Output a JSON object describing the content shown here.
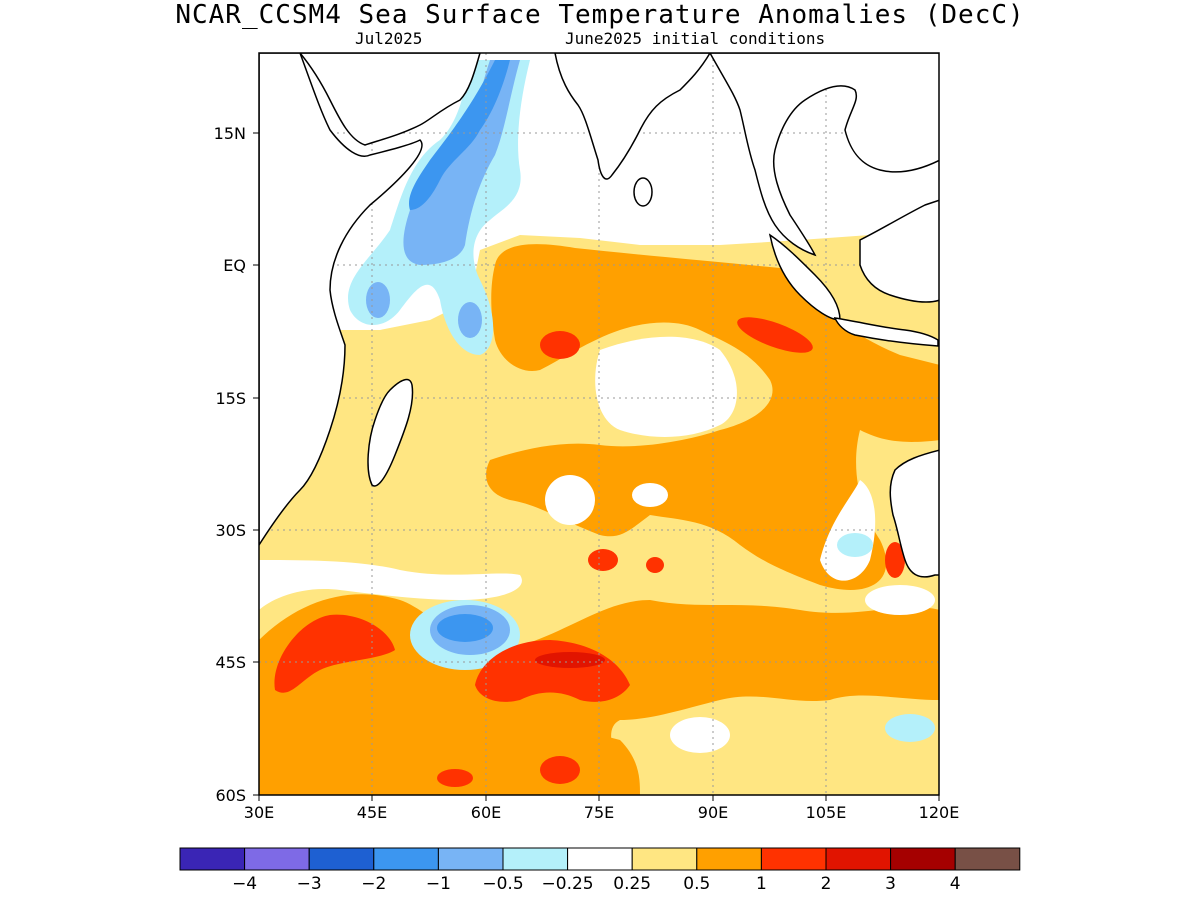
{
  "title": "NCAR_CCSM4 Sea Surface Temperature Anomalies (DecC)",
  "valid_month": "Jul2025",
  "init_conditions": "June2025 initial conditions",
  "axes": {
    "lon_ticks": [
      "30E",
      "45E",
      "60E",
      "75E",
      "90E",
      "105E",
      "120E"
    ],
    "lat_ticks": [
      "15N",
      "EQ",
      "15S",
      "30S",
      "45S",
      "60S"
    ]
  },
  "colorbar": {
    "colors": [
      "#3a25b5",
      "#7e6ae6",
      "#1e60d2",
      "#3c96f0",
      "#78b4f5",
      "#b4f0fa",
      "#ffffff",
      "#ffe682",
      "#ffa000",
      "#ff3200",
      "#e11400",
      "#a50000",
      "#785046"
    ],
    "labels": [
      "−4",
      "−3",
      "−2",
      "−1",
      "−0.5",
      "−0.25",
      "0.25",
      "0.5",
      "1",
      "2",
      "3",
      "4"
    ]
  },
  "map": {
    "lon_range": [
      30,
      120
    ],
    "lat_range": [
      -60,
      24
    ],
    "grid": true,
    "features": [
      "Africa",
      "Arabia",
      "India",
      "Sri Lanka",
      "Madagascar",
      "Southeast Asia",
      "Sumatra",
      "Java",
      "Borneo",
      "Australia"
    ]
  }
}
